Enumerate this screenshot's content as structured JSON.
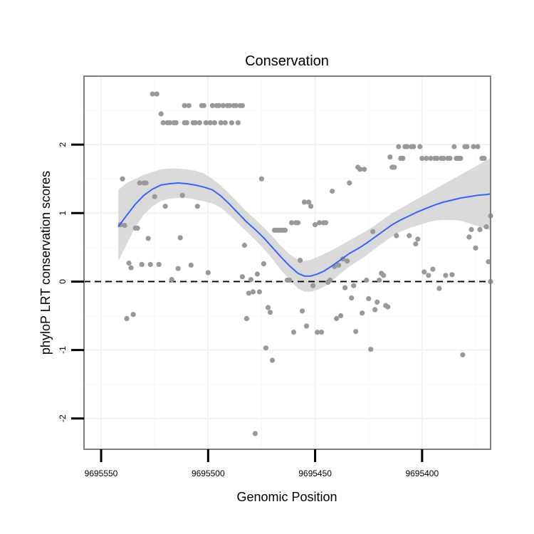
{
  "chart_data": {
    "type": "scatter",
    "title": "Conservation",
    "xlabel": "Genomic Position",
    "ylabel": "phyloP LRT conservation scores",
    "x_reversed": true,
    "xlim": [
      9695558,
      9695368
    ],
    "ylim": [
      -2.45,
      3.0
    ],
    "x_ticks": [
      9695550,
      9695500,
      9695450,
      9695400
    ],
    "x_tick_labels": [
      "9695550",
      "9695500",
      "9695450",
      "9695400"
    ],
    "y_ticks": [
      -2,
      -1,
      0,
      1,
      2
    ],
    "y_tick_labels": [
      "-2",
      "-1",
      "0",
      "1",
      "2"
    ],
    "grid": true,
    "reference_line": {
      "y": 0,
      "style": "dashed",
      "color": "#000000"
    },
    "points_color": "#999999",
    "smooth_color": "#3366FF",
    "band_color": "#D3D3D3",
    "points": [
      [
        9695541,
        0.83
      ],
      [
        9695540,
        1.5
      ],
      [
        9695539,
        0.82
      ],
      [
        9695538,
        -0.54
      ],
      [
        9695537,
        0.27
      ],
      [
        9695536,
        0.2
      ],
      [
        9695535,
        -0.48
      ],
      [
        9695534,
        0.78
      ],
      [
        9695533,
        0.78
      ],
      [
        9695532,
        1.44
      ],
      [
        9695531,
        0.25
      ],
      [
        9695530,
        1.44
      ],
      [
        9695529,
        1.44
      ],
      [
        9695528,
        0.63
      ],
      [
        9695527,
        0.25
      ],
      [
        9695526,
        2.74
      ],
      [
        9695525,
        1.24
      ],
      [
        9695524,
        2.74
      ],
      [
        9695523,
        0.25
      ],
      [
        9695522,
        2.45
      ],
      [
        9695521,
        2.32
      ],
      [
        9695520,
        1.1
      ],
      [
        9695519,
        2.32
      ],
      [
        9695518,
        2.32
      ],
      [
        9695517,
        0.03
      ],
      [
        9695516,
        2.32
      ],
      [
        9695515,
        2.32
      ],
      [
        9695514,
        0.19
      ],
      [
        9695513,
        0.64
      ],
      [
        9695512,
        1.26
      ],
      [
        9695511,
        2.32
      ],
      [
        9695511,
        2.57
      ],
      [
        9695510,
        2.32
      ],
      [
        9695509,
        2.57
      ],
      [
        9695508,
        0.24
      ],
      [
        9695507,
        2.32
      ],
      [
        9695506,
        2.32
      ],
      [
        9695505,
        1.1
      ],
      [
        9695504,
        2.32
      ],
      [
        9695503,
        2.57
      ],
      [
        9695502,
        2.57
      ],
      [
        9695501,
        2.32
      ],
      [
        9695500,
        0.13
      ],
      [
        9695499,
        2.32
      ],
      [
        9695498,
        2.57
      ],
      [
        9695497,
        2.32
      ],
      [
        9695496,
        2.57
      ],
      [
        9695495,
        2.57
      ],
      [
        9695494,
        2.32
      ],
      [
        9695493,
        2.57
      ],
      [
        9695492,
        2.32
      ],
      [
        9695491,
        2.57
      ],
      [
        9695490,
        2.57
      ],
      [
        9695489,
        2.32
      ],
      [
        9695488,
        2.57
      ],
      [
        9695487,
        2.57
      ],
      [
        9695486,
        2.32
      ],
      [
        9695485,
        2.57
      ],
      [
        9695484,
        2.57
      ],
      [
        9695484,
        0.07
      ],
      [
        9695483,
        0.53
      ],
      [
        9695482,
        -0.54
      ],
      [
        9695481,
        -0.17
      ],
      [
        9695480,
        0.03
      ],
      [
        9695479,
        -0.15
      ],
      [
        9695478,
        -2.22
      ],
      [
        9695477,
        0.11
      ],
      [
        9695476,
        -0.15
      ],
      [
        9695475,
        1.5
      ],
      [
        9695474,
        0.26
      ],
      [
        9695473,
        -0.97
      ],
      [
        9695472,
        -0.38
      ],
      [
        9695471,
        -0.45
      ],
      [
        9695470,
        -1.15
      ],
      [
        9695469,
        0.75
      ],
      [
        9695468,
        0.75
      ],
      [
        9695467,
        0.75
      ],
      [
        9695466,
        0.75
      ],
      [
        9695465,
        0.75
      ],
      [
        9695464,
        0.75
      ],
      [
        9695463,
        0.02
      ],
      [
        9695462,
        0.02
      ],
      [
        9695461,
        0.86
      ],
      [
        9695460,
        -0.74
      ],
      [
        9695459,
        0.86
      ],
      [
        9695458,
        0.86
      ],
      [
        9695457,
        0.31
      ],
      [
        9695456,
        -0.43
      ],
      [
        9695455,
        1.16
      ],
      [
        9695454,
        -0.65
      ],
      [
        9695453,
        1.16
      ],
      [
        9695452,
        1.1
      ],
      [
        9695451,
        -0.06
      ],
      [
        9695450,
        0.83
      ],
      [
        9695449,
        -0.74
      ],
      [
        9695448,
        0.86
      ],
      [
        9695447,
        -0.74
      ],
      [
        9695446,
        0.86
      ],
      [
        9695445,
        0.86
      ],
      [
        9695444,
        -0.01
      ],
      [
        9695443,
        0.02
      ],
      [
        9695442,
        1.32
      ],
      [
        9695441,
        0.22
      ],
      [
        9695440,
        -0.54
      ],
      [
        9695439,
        0.24
      ],
      [
        9695438,
        -0.5
      ],
      [
        9695437,
        0.33
      ],
      [
        9695436,
        -0.09
      ],
      [
        9695435,
        0.3
      ],
      [
        9695434,
        1.44
      ],
      [
        9695433,
        -0.24
      ],
      [
        9695432,
        -0.06
      ],
      [
        9695431,
        -0.73
      ],
      [
        9695430,
        1.67
      ],
      [
        9695429,
        1.64
      ],
      [
        9695428,
        -0.46
      ],
      [
        9695427,
        1.64
      ],
      [
        9695426,
        0.02
      ],
      [
        9695425,
        -0.25
      ],
      [
        9695424,
        -0.99
      ],
      [
        9695423,
        0.73
      ],
      [
        9695422,
        -0.41
      ],
      [
        9695421,
        -0.3
      ],
      [
        9695420,
        0.02
      ],
      [
        9695419,
        0.12
      ],
      [
        9695418,
        0.09
      ],
      [
        9695417,
        -0.35
      ],
      [
        9695416,
        -0.37
      ],
      [
        9695415,
        1.82
      ],
      [
        9695414,
        1.67
      ],
      [
        9695413,
        1.67
      ],
      [
        9695412,
        0.67
      ],
      [
        9695411,
        1.97
      ],
      [
        9695410,
        1.8
      ],
      [
        9695409,
        1.8
      ],
      [
        9695408,
        1.97
      ],
      [
        9695407,
        1.97
      ],
      [
        9695406,
        0.67
      ],
      [
        9695405,
        1.97
      ],
      [
        9695404,
        1.97
      ],
      [
        9695403,
        0.55
      ],
      [
        9695402,
        0.62
      ],
      [
        9695401,
        1.97
      ],
      [
        9695400,
        1.8
      ],
      [
        9695399,
        0.14
      ],
      [
        9695398,
        1.8
      ],
      [
        9695397,
        0.09
      ],
      [
        9695396,
        1.8
      ],
      [
        9695395,
        0.18
      ],
      [
        9695394,
        1.8
      ],
      [
        9695393,
        1.8
      ],
      [
        9695392,
        -0.1
      ],
      [
        9695391,
        1.8
      ],
      [
        9695390,
        1.8
      ],
      [
        9695389,
        0.09
      ],
      [
        9695388,
        1.8
      ],
      [
        9695387,
        1.8
      ],
      [
        9695386,
        0.1
      ],
      [
        9695385,
        1.97
      ],
      [
        9695384,
        1.8
      ],
      [
        9695383,
        1.8
      ],
      [
        9695382,
        1.8
      ],
      [
        9695381,
        -1.07
      ],
      [
        9695380,
        1.97
      ],
      [
        9695379,
        1.97
      ],
      [
        9695378,
        0.65
      ],
      [
        9695377,
        0.76
      ],
      [
        9695376,
        1.97
      ],
      [
        9695375,
        0.49
      ],
      [
        9695374,
        1.97
      ],
      [
        9695373,
        0.76
      ],
      [
        9695372,
        1.8
      ],
      [
        9695371,
        1.8
      ],
      [
        9695370,
        0.8
      ],
      [
        9695369,
        0.29
      ],
      [
        9695368,
        0.96
      ],
      [
        9695368,
        0.0
      ]
    ],
    "smooth": [
      [
        9695542,
        0.8
      ],
      [
        9695538,
        0.97
      ],
      [
        9695534,
        1.13
      ],
      [
        9695530,
        1.26
      ],
      [
        9695526,
        1.35
      ],
      [
        9695522,
        1.41
      ],
      [
        9695518,
        1.43
      ],
      [
        9695514,
        1.44
      ],
      [
        9695510,
        1.43
      ],
      [
        9695506,
        1.41
      ],
      [
        9695502,
        1.38
      ],
      [
        9695498,
        1.34
      ],
      [
        9695494,
        1.25
      ],
      [
        9695490,
        1.13
      ],
      [
        9695486,
        1.0
      ],
      [
        9695482,
        0.87
      ],
      [
        9695478,
        0.76
      ],
      [
        9695474,
        0.64
      ],
      [
        9695470,
        0.5
      ],
      [
        9695466,
        0.36
      ],
      [
        9695462,
        0.23
      ],
      [
        9695458,
        0.12
      ],
      [
        9695455,
        0.08
      ],
      [
        9695452,
        0.08
      ],
      [
        9695449,
        0.11
      ],
      [
        9695446,
        0.15
      ],
      [
        9695442,
        0.23
      ],
      [
        9695438,
        0.32
      ],
      [
        9695434,
        0.41
      ],
      [
        9695430,
        0.48
      ],
      [
        9695426,
        0.56
      ],
      [
        9695422,
        0.65
      ],
      [
        9695418,
        0.74
      ],
      [
        9695414,
        0.83
      ],
      [
        9695410,
        0.9
      ],
      [
        9695406,
        0.96
      ],
      [
        9695402,
        1.02
      ],
      [
        9695398,
        1.07
      ],
      [
        9695394,
        1.12
      ],
      [
        9695390,
        1.16
      ],
      [
        9695386,
        1.19
      ],
      [
        9695382,
        1.22
      ],
      [
        9695378,
        1.24
      ],
      [
        9695374,
        1.26
      ],
      [
        9695370,
        1.27
      ],
      [
        9695368,
        1.28
      ]
    ],
    "band_upper": [
      [
        9695542,
        1.34
      ],
      [
        9695538,
        1.44
      ],
      [
        9695534,
        1.5
      ],
      [
        9695530,
        1.56
      ],
      [
        9695526,
        1.6
      ],
      [
        9695522,
        1.64
      ],
      [
        9695518,
        1.65
      ],
      [
        9695514,
        1.65
      ],
      [
        9695510,
        1.64
      ],
      [
        9695506,
        1.62
      ],
      [
        9695502,
        1.58
      ],
      [
        9695498,
        1.5
      ],
      [
        9695494,
        1.4
      ],
      [
        9695490,
        1.28
      ],
      [
        9695486,
        1.15
      ],
      [
        9695482,
        1.02
      ],
      [
        9695478,
        0.91
      ],
      [
        9695474,
        0.79
      ],
      [
        9695470,
        0.66
      ],
      [
        9695466,
        0.52
      ],
      [
        9695462,
        0.4
      ],
      [
        9695458,
        0.32
      ],
      [
        9695455,
        0.3
      ],
      [
        9695452,
        0.32
      ],
      [
        9695449,
        0.36
      ],
      [
        9695446,
        0.4
      ],
      [
        9695442,
        0.46
      ],
      [
        9695438,
        0.53
      ],
      [
        9695434,
        0.6
      ],
      [
        9695430,
        0.67
      ],
      [
        9695426,
        0.74
      ],
      [
        9695422,
        0.82
      ],
      [
        9695418,
        0.91
      ],
      [
        9695414,
        1.0
      ],
      [
        9695410,
        1.07
      ],
      [
        9695406,
        1.14
      ],
      [
        9695402,
        1.21
      ],
      [
        9695398,
        1.28
      ],
      [
        9695394,
        1.35
      ],
      [
        9695390,
        1.42
      ],
      [
        9695386,
        1.49
      ],
      [
        9695382,
        1.56
      ],
      [
        9695378,
        1.63
      ],
      [
        9695374,
        1.7
      ],
      [
        9695370,
        1.77
      ],
      [
        9695368,
        1.81
      ]
    ],
    "band_lower": [
      [
        9695542,
        0.3
      ],
      [
        9695538,
        0.55
      ],
      [
        9695534,
        0.8
      ],
      [
        9695530,
        0.98
      ],
      [
        9695526,
        1.1
      ],
      [
        9695522,
        1.18
      ],
      [
        9695518,
        1.21
      ],
      [
        9695514,
        1.22
      ],
      [
        9695510,
        1.22
      ],
      [
        9695506,
        1.2
      ],
      [
        9695502,
        1.17
      ],
      [
        9695498,
        1.14
      ],
      [
        9695494,
        1.08
      ],
      [
        9695490,
        0.97
      ],
      [
        9695486,
        0.85
      ],
      [
        9695482,
        0.73
      ],
      [
        9695478,
        0.61
      ],
      [
        9695474,
        0.48
      ],
      [
        9695470,
        0.33
      ],
      [
        9695466,
        0.17
      ],
      [
        9695462,
        0.03
      ],
      [
        9695458,
        -0.1
      ],
      [
        9695455,
        -0.15
      ],
      [
        9695452,
        -0.15
      ],
      [
        9695449,
        -0.12
      ],
      [
        9695446,
        -0.08
      ],
      [
        9695442,
        0.01
      ],
      [
        9695438,
        0.12
      ],
      [
        9695434,
        0.22
      ],
      [
        9695430,
        0.3
      ],
      [
        9695426,
        0.38
      ],
      [
        9695422,
        0.48
      ],
      [
        9695418,
        0.57
      ],
      [
        9695414,
        0.66
      ],
      [
        9695410,
        0.73
      ],
      [
        9695406,
        0.78
      ],
      [
        9695402,
        0.82
      ],
      [
        9695398,
        0.86
      ],
      [
        9695394,
        0.89
      ],
      [
        9695390,
        0.9
      ],
      [
        9695386,
        0.9
      ],
      [
        9695382,
        0.89
      ],
      [
        9695378,
        0.85
      ],
      [
        9695374,
        0.81
      ],
      [
        9695370,
        0.77
      ],
      [
        9695368,
        0.75
      ]
    ]
  }
}
